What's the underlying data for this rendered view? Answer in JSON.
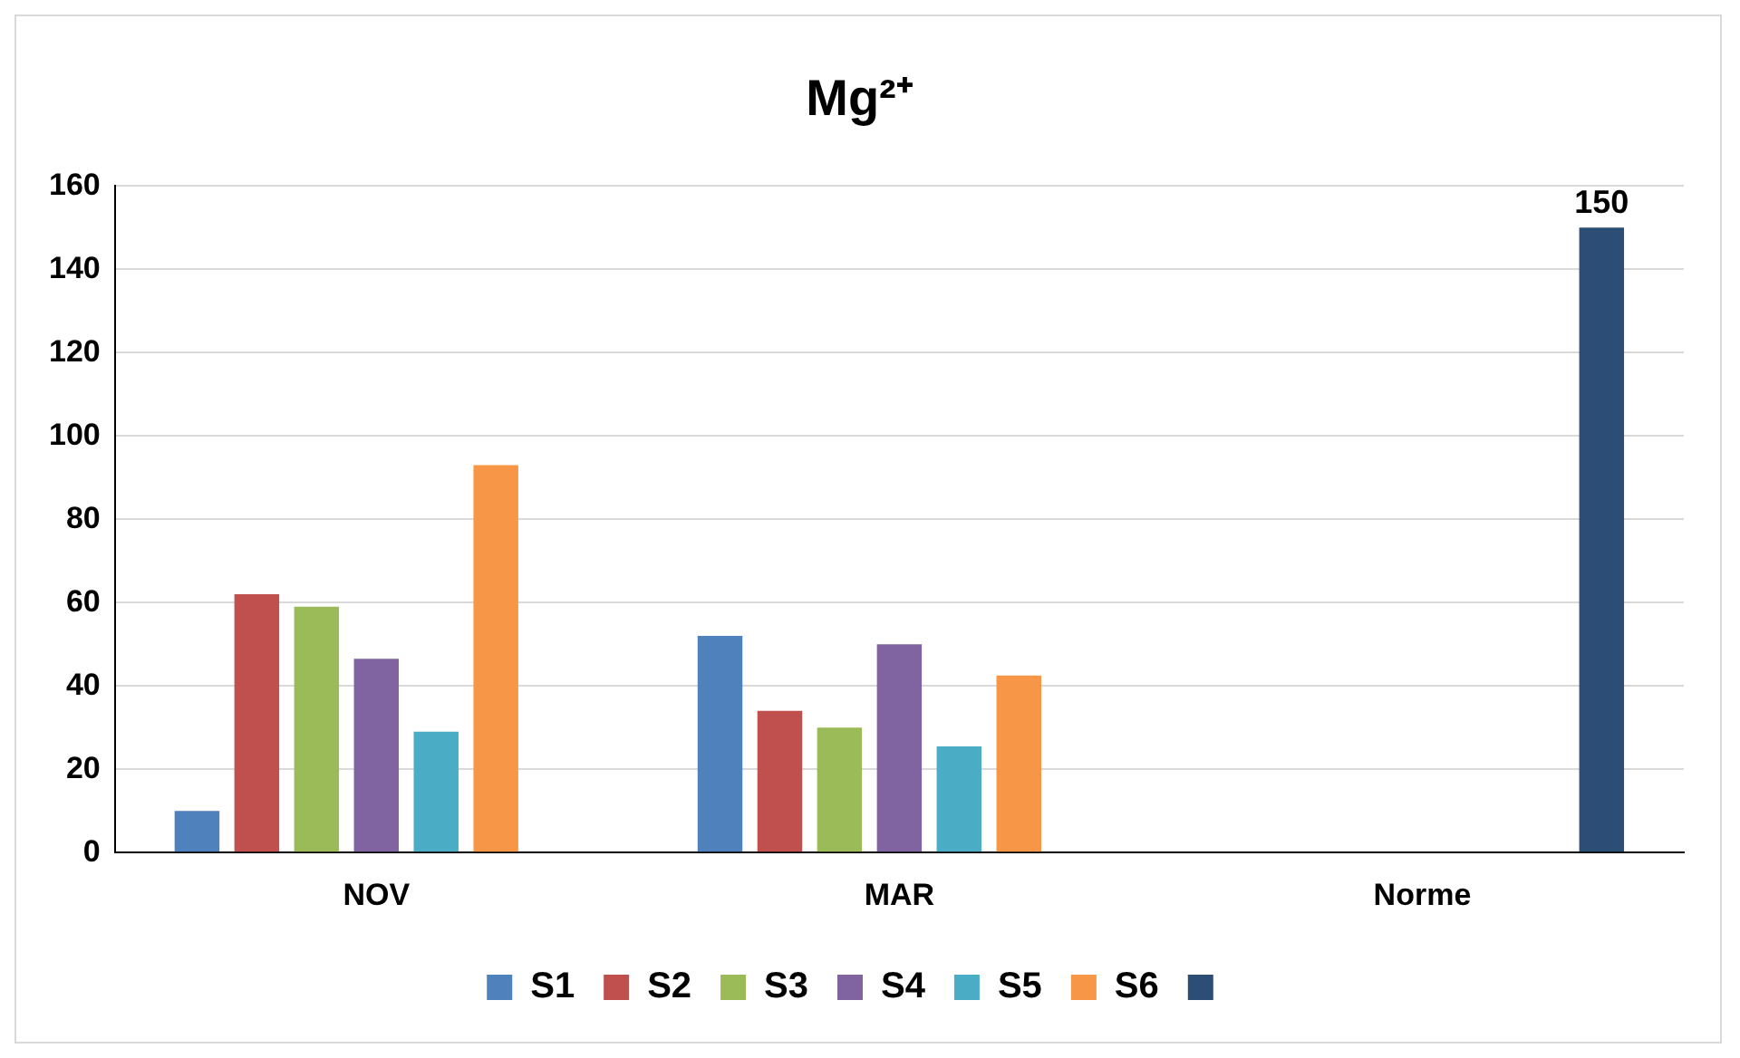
{
  "chart_data": {
    "type": "bar",
    "title": "Mg²⁺",
    "categories": [
      "NOV",
      "MAR",
      "Norme"
    ],
    "series": [
      {
        "name": "S1",
        "color": "#4f81bd",
        "values": [
          10,
          52,
          null
        ]
      },
      {
        "name": "S2",
        "color": "#c0504d",
        "values": [
          62,
          34,
          null
        ]
      },
      {
        "name": "S3",
        "color": "#9bbb59",
        "values": [
          59,
          30,
          null
        ]
      },
      {
        "name": "S4",
        "color": "#8064a2",
        "values": [
          46.5,
          50,
          null
        ]
      },
      {
        "name": "S5",
        "color": "#4bacc6",
        "values": [
          29,
          25.5,
          null
        ]
      },
      {
        "name": "S6",
        "color": "#f79646",
        "values": [
          93,
          42.5,
          null
        ]
      },
      {
        "color": "#2c4d75",
        "values": [
          null,
          null,
          150
        ],
        "value_labels": [
          null,
          null,
          "150"
        ]
      }
    ],
    "ylim": [
      0,
      160
    ],
    "yticks": [
      0,
      20,
      40,
      60,
      80,
      100,
      120,
      140,
      160
    ],
    "grid": "y",
    "legend": "bottom"
  }
}
